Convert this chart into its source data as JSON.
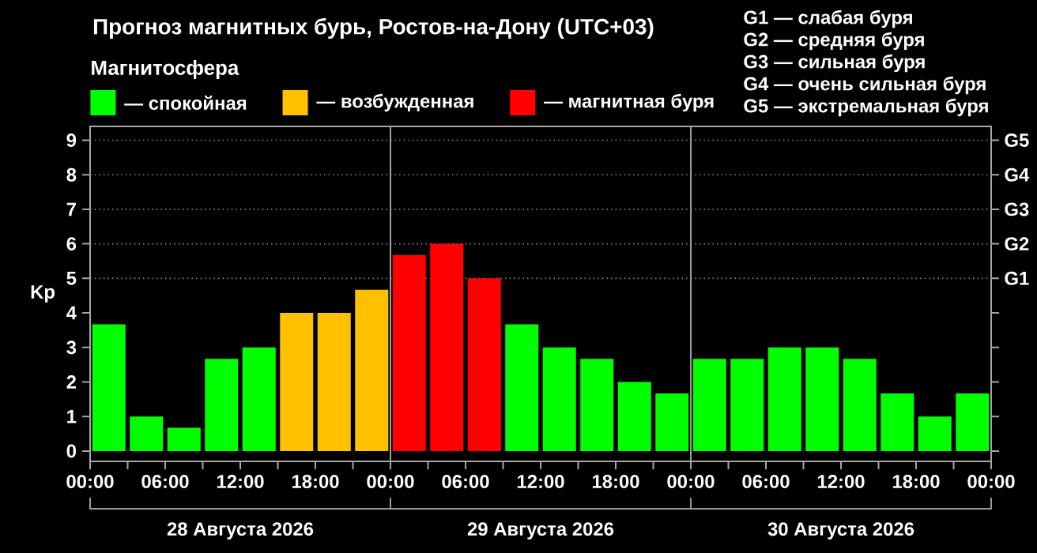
{
  "chart_data": {
    "type": "bar",
    "title": "Прогноз магнитных бурь, Ростов-на-Дону (UTC+03)",
    "legend_title": "Магнитосфера",
    "ylabel": "Kp",
    "legend": "top left",
    "x": [
      "2026-08-28T01:30",
      "2026-08-28T04:30",
      "2026-08-28T07:30",
      "2026-08-28T10:30",
      "2026-08-28T13:30",
      "2026-08-28T16:30",
      "2026-08-28T19:30",
      "2026-08-28T22:30",
      "2026-08-29T01:30",
      "2026-08-29T04:30",
      "2026-08-29T07:30",
      "2026-08-29T10:30",
      "2026-08-29T13:30",
      "2026-08-29T16:30",
      "2026-08-29T19:30",
      "2026-08-29T22:30",
      "2026-08-30T01:30",
      "2026-08-30T04:30",
      "2026-08-30T07:30",
      "2026-08-30T10:30",
      "2026-08-30T13:30",
      "2026-08-30T16:30",
      "2026-08-30T19:30",
      "2026-08-30T22:30"
    ],
    "series": [
      {
        "name": "— спокойная",
        "color": "#00ff00",
        "values": [
          3.67,
          1,
          0.67,
          2.67,
          3,
          null,
          null,
          null,
          null,
          null,
          null,
          3.67,
          3,
          2.67,
          2,
          1.67,
          2.67,
          2.67,
          3,
          3,
          2.67,
          1.67,
          1,
          1.67
        ]
      },
      {
        "name": "— возбужденная",
        "color": "#ffc000",
        "values": [
          null,
          null,
          null,
          null,
          null,
          4,
          4,
          4.67,
          null,
          null,
          null,
          null,
          null,
          null,
          null,
          null,
          null,
          null,
          null,
          null,
          null,
          null,
          null,
          null
        ]
      },
      {
        "name": "— магнитная буря",
        "color": "#ff0000",
        "values": [
          null,
          null,
          null,
          null,
          null,
          null,
          null,
          null,
          5.67,
          6,
          5,
          null,
          null,
          null,
          null,
          null,
          null,
          null,
          null,
          null,
          null,
          null,
          null,
          null
        ]
      }
    ],
    "xlim": [
      "2026-08-28T00:00",
      "2026-08-31T00:00"
    ],
    "xticks": [
      {
        "value": "2026-08-28T00:00",
        "label": "00:00"
      },
      {
        "value": "2026-08-28T03:00",
        "label": null
      },
      {
        "value": "2026-08-28T06:00",
        "label": "06:00"
      },
      {
        "value": "2026-08-28T09:00",
        "label": null
      },
      {
        "value": "2026-08-28T12:00",
        "label": "12:00"
      },
      {
        "value": "2026-08-28T15:00",
        "label": null
      },
      {
        "value": "2026-08-28T18:00",
        "label": "18:00"
      },
      {
        "value": "2026-08-28T21:00",
        "label": null
      },
      {
        "value": "2026-08-29T00:00",
        "label": "00:00"
      },
      {
        "value": "2026-08-29T03:00",
        "label": null
      },
      {
        "value": "2026-08-29T06:00",
        "label": "06:00"
      },
      {
        "value": "2026-08-29T09:00",
        "label": null
      },
      {
        "value": "2026-08-29T12:00",
        "label": "12:00"
      },
      {
        "value": "2026-08-29T15:00",
        "label": null
      },
      {
        "value": "2026-08-29T18:00",
        "label": "18:00"
      },
      {
        "value": "2026-08-29T21:00",
        "label": null
      },
      {
        "value": "2026-08-30T00:00",
        "label": "00:00"
      },
      {
        "value": "2026-08-30T03:00",
        "label": null
      },
      {
        "value": "2026-08-30T06:00",
        "label": "06:00"
      },
      {
        "value": "2026-08-30T09:00",
        "label": null
      },
      {
        "value": "2026-08-30T12:00",
        "label": "12:00"
      },
      {
        "value": "2026-08-30T15:00",
        "label": null
      },
      {
        "value": "2026-08-30T18:00",
        "label": "18:00"
      },
      {
        "value": "2026-08-30T21:00",
        "label": null
      },
      {
        "value": "2026-08-31T00:00",
        "label": "00:00"
      }
    ],
    "ylim": [
      -0.3,
      9.4
    ],
    "yticks": [
      0,
      1,
      2,
      3,
      4,
      5,
      6,
      7,
      8,
      9
    ],
    "ref_lines": [
      {
        "axis": "y",
        "value": 5,
        "label": "G1",
        "color": "#808080",
        "line_style": "dotted"
      },
      {
        "axis": "y",
        "value": 6,
        "label": "G2",
        "color": "#808080",
        "line_style": "dotted"
      },
      {
        "axis": "y",
        "value": 7,
        "label": "G3",
        "color": "#808080",
        "line_style": "dotted"
      },
      {
        "axis": "y",
        "value": 8,
        "label": "G4",
        "color": "#808080",
        "line_style": "dotted"
      },
      {
        "axis": "y",
        "value": 9,
        "label": "G5",
        "color": "#808080",
        "line_style": "dotted"
      },
      {
        "axis": "x",
        "value": "2026-08-29T00:00",
        "color": "#a0a0a0",
        "line_style": "solid"
      },
      {
        "axis": "x",
        "value": "2026-08-30T00:00",
        "color": "#a0a0a0",
        "line_style": "solid"
      }
    ],
    "annotations": [
      "28 Августа 2026",
      "29 Августа 2026",
      "30 Августа 2026",
      "G1 — слабая буря",
      "G2 — средняя буря",
      "G3 — сильная буря",
      "G4 — очень сильная буря",
      "G5 — экстремальная буря"
    ]
  }
}
